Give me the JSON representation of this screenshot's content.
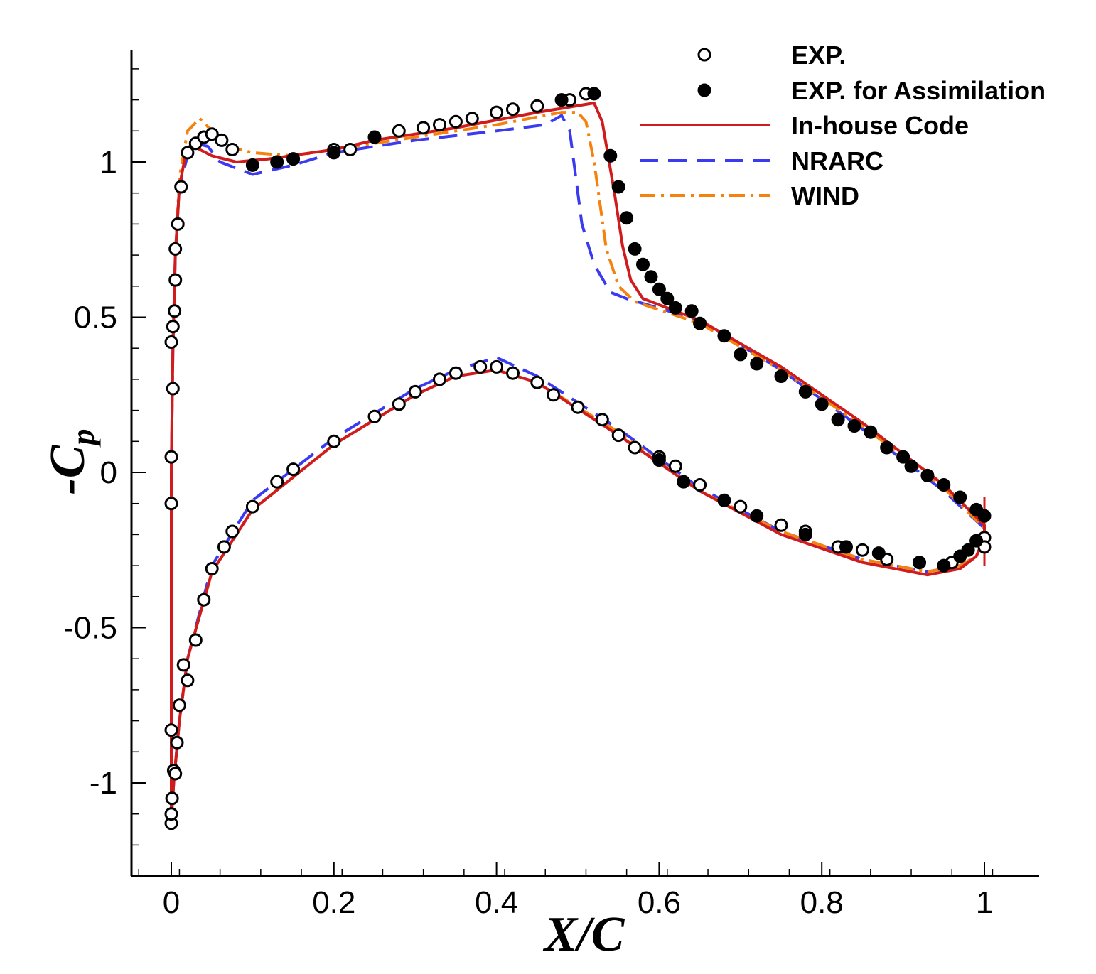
{
  "chart_data": {
    "type": "line",
    "title": "",
    "xlabel": "X/C",
    "ylabel_prefix": "-C",
    "ylabel_sub": "p",
    "xlim": [
      -0.05,
      1.07
    ],
    "ylim": [
      -1.3,
      1.37
    ],
    "xticks": [
      0,
      0.2,
      0.4,
      0.6,
      0.8,
      1
    ],
    "xtick_labels": [
      "0",
      "0.2",
      "0.4",
      "0.6",
      "0.8",
      "1"
    ],
    "yticks": [
      -1,
      -0.5,
      0,
      0.5,
      1
    ],
    "ytick_labels": [
      "-1",
      "-0.5",
      "0",
      "0.5",
      "1"
    ],
    "grid": false,
    "legend_position": "top-right",
    "colors": {
      "in_house": "#d01c1c",
      "nrarc": "#3a3af0",
      "wind": "#f5820d",
      "markers": "#000000"
    },
    "series": [
      {
        "name": "EXP.",
        "style": "open-circle",
        "points": [
          [
            0.0,
            -1.13
          ],
          [
            0.0,
            -1.1
          ],
          [
            0.001,
            -1.05
          ],
          [
            0.0,
            -0.83
          ],
          [
            0.003,
            -0.96
          ],
          [
            0.005,
            -0.97
          ],
          [
            0.007,
            -0.87
          ],
          [
            0.01,
            -0.75
          ],
          [
            0.015,
            -0.62
          ],
          [
            0.02,
            -0.67
          ],
          [
            0.03,
            -0.54
          ],
          [
            0.04,
            -0.41
          ],
          [
            0.05,
            -0.31
          ],
          [
            0.065,
            -0.24
          ],
          [
            0.075,
            -0.19
          ],
          [
            0.1,
            -0.11
          ],
          [
            0.13,
            -0.03
          ],
          [
            0.15,
            0.01
          ],
          [
            0.2,
            0.1
          ],
          [
            0.25,
            0.18
          ],
          [
            0.28,
            0.22
          ],
          [
            0.3,
            0.26
          ],
          [
            0.33,
            0.3
          ],
          [
            0.35,
            0.32
          ],
          [
            0.38,
            0.34
          ],
          [
            0.4,
            0.34
          ],
          [
            0.42,
            0.32
          ],
          [
            0.45,
            0.29
          ],
          [
            0.47,
            0.25
          ],
          [
            0.5,
            0.21
          ],
          [
            0.53,
            0.17
          ],
          [
            0.55,
            0.12
          ],
          [
            0.57,
            0.08
          ],
          [
            0.6,
            0.05
          ],
          [
            0.62,
            0.02
          ],
          [
            0.65,
            -0.04
          ],
          [
            0.7,
            -0.11
          ],
          [
            0.75,
            -0.17
          ],
          [
            0.78,
            -0.19
          ],
          [
            0.82,
            -0.24
          ],
          [
            0.85,
            -0.25
          ],
          [
            0.88,
            -0.28
          ],
          [
            0.92,
            -0.29
          ],
          [
            0.96,
            -0.29
          ],
          [
            1.0,
            -0.21
          ],
          [
            1.0,
            -0.24
          ],
          [
            0.0,
            -0.1
          ],
          [
            0.0,
            0.05
          ],
          [
            0.002,
            0.27
          ],
          [
            0.0,
            0.42
          ],
          [
            0.002,
            0.47
          ],
          [
            0.004,
            0.52
          ],
          [
            0.005,
            0.62
          ],
          [
            0.005,
            0.72
          ],
          [
            0.008,
            0.8
          ],
          [
            0.012,
            0.92
          ],
          [
            0.02,
            1.03
          ],
          [
            0.03,
            1.06
          ],
          [
            0.04,
            1.08
          ],
          [
            0.05,
            1.09
          ],
          [
            0.062,
            1.07
          ],
          [
            0.075,
            1.04
          ],
          [
            0.2,
            1.04
          ],
          [
            0.22,
            1.04
          ],
          [
            0.28,
            1.1
          ],
          [
            0.31,
            1.11
          ],
          [
            0.33,
            1.12
          ],
          [
            0.35,
            1.13
          ],
          [
            0.37,
            1.14
          ],
          [
            0.4,
            1.16
          ],
          [
            0.42,
            1.17
          ],
          [
            0.45,
            1.18
          ],
          [
            0.49,
            1.2
          ],
          [
            0.51,
            1.22
          ]
        ]
      },
      {
        "name": "EXP. for Assimilation",
        "style": "filled-circle",
        "points": [
          [
            0.1,
            0.99
          ],
          [
            0.13,
            1.0
          ],
          [
            0.15,
            1.01
          ],
          [
            0.2,
            1.03
          ],
          [
            0.25,
            1.08
          ],
          [
            0.48,
            1.2
          ],
          [
            0.52,
            1.22
          ],
          [
            0.54,
            1.02
          ],
          [
            0.55,
            0.92
          ],
          [
            0.56,
            0.82
          ],
          [
            0.57,
            0.72
          ],
          [
            0.58,
            0.67
          ],
          [
            0.59,
            0.63
          ],
          [
            0.6,
            0.59
          ],
          [
            0.61,
            0.56
          ],
          [
            0.62,
            0.53
          ],
          [
            0.64,
            0.52
          ],
          [
            0.65,
            0.48
          ],
          [
            0.68,
            0.44
          ],
          [
            0.7,
            0.38
          ],
          [
            0.72,
            0.35
          ],
          [
            0.75,
            0.31
          ],
          [
            0.78,
            0.26
          ],
          [
            0.8,
            0.22
          ],
          [
            0.82,
            0.17
          ],
          [
            0.84,
            0.15
          ],
          [
            0.86,
            0.13
          ],
          [
            0.88,
            0.08
          ],
          [
            0.9,
            0.05
          ],
          [
            0.91,
            0.02
          ],
          [
            0.93,
            -0.01
          ],
          [
            0.95,
            -0.04
          ],
          [
            0.97,
            -0.08
          ],
          [
            0.99,
            -0.12
          ],
          [
            1.0,
            -0.14
          ],
          [
            0.6,
            0.04
          ],
          [
            0.63,
            -0.03
          ],
          [
            0.68,
            -0.09
          ],
          [
            0.72,
            -0.14
          ],
          [
            0.78,
            -0.2
          ],
          [
            0.83,
            -0.24
          ],
          [
            0.87,
            -0.26
          ],
          [
            0.92,
            -0.29
          ],
          [
            0.95,
            -0.3
          ],
          [
            0.97,
            -0.27
          ],
          [
            0.98,
            -0.25
          ],
          [
            0.99,
            -0.22
          ]
        ]
      },
      {
        "name": "In-house Code",
        "style": "solid",
        "points": [
          [
            0.0,
            -1.12
          ],
          [
            0.0,
            -0.6
          ],
          [
            0.0,
            0.0
          ],
          [
            0.002,
            0.4
          ],
          [
            0.005,
            0.7
          ],
          [
            0.01,
            0.92
          ],
          [
            0.018,
            1.03
          ],
          [
            0.025,
            1.06
          ],
          [
            0.035,
            1.04
          ],
          [
            0.05,
            1.02
          ],
          [
            0.08,
            1.0
          ],
          [
            0.12,
            1.01
          ],
          [
            0.2,
            1.04
          ],
          [
            0.25,
            1.07
          ],
          [
            0.35,
            1.11
          ],
          [
            0.45,
            1.16
          ],
          [
            0.52,
            1.19
          ],
          [
            0.53,
            1.13
          ],
          [
            0.545,
            0.9
          ],
          [
            0.555,
            0.73
          ],
          [
            0.565,
            0.62
          ],
          [
            0.58,
            0.56
          ],
          [
            0.65,
            0.49
          ],
          [
            0.75,
            0.34
          ],
          [
            0.85,
            0.16
          ],
          [
            0.95,
            -0.04
          ],
          [
            1.0,
            -0.17
          ],
          [
            1.0,
            -0.21
          ],
          [
            0.99,
            -0.27
          ],
          [
            0.97,
            -0.31
          ],
          [
            0.93,
            -0.33
          ],
          [
            0.85,
            -0.29
          ],
          [
            0.75,
            -0.2
          ],
          [
            0.65,
            -0.06
          ],
          [
            0.55,
            0.12
          ],
          [
            0.45,
            0.29
          ],
          [
            0.4,
            0.33
          ],
          [
            0.35,
            0.31
          ],
          [
            0.3,
            0.25
          ],
          [
            0.2,
            0.09
          ],
          [
            0.1,
            -0.12
          ],
          [
            0.05,
            -0.32
          ],
          [
            0.02,
            -0.6
          ],
          [
            0.01,
            -0.8
          ],
          [
            0.003,
            -1.0
          ],
          [
            0.0,
            -1.12
          ]
        ]
      },
      {
        "name": "NRARC",
        "style": "dashed",
        "points": [
          [
            0.0,
            -1.12
          ],
          [
            0.0,
            -0.6
          ],
          [
            0.0,
            0.0
          ],
          [
            0.002,
            0.4
          ],
          [
            0.005,
            0.7
          ],
          [
            0.01,
            0.92
          ],
          [
            0.02,
            1.02
          ],
          [
            0.03,
            1.06
          ],
          [
            0.045,
            1.05
          ],
          [
            0.06,
            1.0
          ],
          [
            0.1,
            0.96
          ],
          [
            0.15,
            0.99
          ],
          [
            0.2,
            1.03
          ],
          [
            0.3,
            1.07
          ],
          [
            0.4,
            1.1
          ],
          [
            0.46,
            1.12
          ],
          [
            0.48,
            1.15
          ],
          [
            0.49,
            1.1
          ],
          [
            0.505,
            0.8
          ],
          [
            0.52,
            0.67
          ],
          [
            0.54,
            0.58
          ],
          [
            0.56,
            0.56
          ],
          [
            0.65,
            0.49
          ],
          [
            0.75,
            0.33
          ],
          [
            0.85,
            0.14
          ],
          [
            0.95,
            -0.06
          ],
          [
            1.0,
            -0.18
          ],
          [
            1.0,
            -0.21
          ],
          [
            0.99,
            -0.27
          ],
          [
            0.97,
            -0.3
          ],
          [
            0.93,
            -0.32
          ],
          [
            0.85,
            -0.28
          ],
          [
            0.75,
            -0.19
          ],
          [
            0.65,
            -0.05
          ],
          [
            0.55,
            0.14
          ],
          [
            0.45,
            0.31
          ],
          [
            0.4,
            0.37
          ],
          [
            0.35,
            0.33
          ],
          [
            0.3,
            0.27
          ],
          [
            0.2,
            0.11
          ],
          [
            0.1,
            -0.09
          ],
          [
            0.05,
            -0.3
          ],
          [
            0.02,
            -0.6
          ],
          [
            0.01,
            -0.8
          ],
          [
            0.003,
            -1.0
          ],
          [
            0.0,
            -1.12
          ]
        ]
      },
      {
        "name": "WIND",
        "style": "dash-dot",
        "points": [
          [
            0.0,
            -1.12
          ],
          [
            0.0,
            -0.6
          ],
          [
            0.0,
            0.0
          ],
          [
            0.002,
            0.4
          ],
          [
            0.005,
            0.7
          ],
          [
            0.01,
            0.95
          ],
          [
            0.02,
            1.1
          ],
          [
            0.035,
            1.14
          ],
          [
            0.05,
            1.1
          ],
          [
            0.07,
            1.05
          ],
          [
            0.1,
            1.03
          ],
          [
            0.15,
            1.02
          ],
          [
            0.2,
            1.04
          ],
          [
            0.3,
            1.08
          ],
          [
            0.4,
            1.12
          ],
          [
            0.48,
            1.16
          ],
          [
            0.5,
            1.16
          ],
          [
            0.51,
            1.13
          ],
          [
            0.52,
            1.0
          ],
          [
            0.535,
            0.72
          ],
          [
            0.55,
            0.6
          ],
          [
            0.57,
            0.55
          ],
          [
            0.65,
            0.48
          ],
          [
            0.75,
            0.33
          ],
          [
            0.85,
            0.15
          ],
          [
            0.95,
            -0.05
          ],
          [
            1.0,
            -0.18
          ],
          [
            1.0,
            -0.21
          ],
          [
            0.99,
            -0.27
          ],
          [
            0.97,
            -0.3
          ],
          [
            0.93,
            -0.32
          ],
          [
            0.85,
            -0.28
          ],
          [
            0.75,
            -0.19
          ],
          [
            0.65,
            -0.06
          ],
          [
            0.55,
            0.13
          ],
          [
            0.45,
            0.29
          ],
          [
            0.4,
            0.33
          ],
          [
            0.35,
            0.31
          ],
          [
            0.3,
            0.25
          ],
          [
            0.2,
            0.09
          ],
          [
            0.1,
            -0.12
          ],
          [
            0.05,
            -0.32
          ],
          [
            0.02,
            -0.6
          ],
          [
            0.01,
            -0.8
          ],
          [
            0.003,
            -1.0
          ],
          [
            0.0,
            -1.12
          ]
        ]
      }
    ]
  }
}
